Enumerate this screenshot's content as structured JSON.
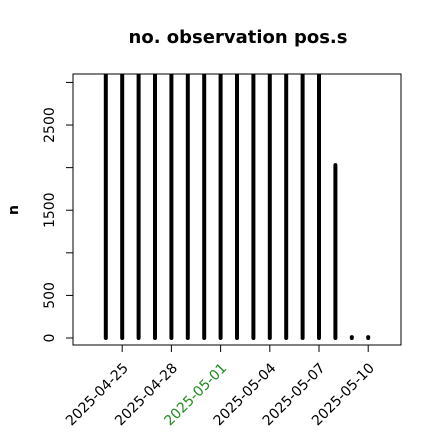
{
  "chart_data": {
    "type": "bar",
    "title": "no. observation pos.s",
    "y_label": "n",
    "x": [
      "2025-04-24",
      "2025-04-25",
      "2025-04-26",
      "2025-04-27",
      "2025-04-28",
      "2025-04-29",
      "2025-04-30",
      "2025-05-01",
      "2025-05-02",
      "2025-05-03",
      "2025-05-04",
      "2025-05-05",
      "2025-05-06",
      "2025-05-07",
      "2025-05-08",
      "2025-05-09",
      "2025-05-10"
    ],
    "values": [
      3100,
      3100,
      3100,
      3100,
      3100,
      3100,
      3100,
      3100,
      3100,
      3100,
      3100,
      3100,
      3100,
      3100,
      2030,
      10,
      10
    ],
    "color": "#000000",
    "xlim": [
      "2025-04-22",
      "2025-05-12"
    ],
    "xticks": [
      "2025-04-25",
      "2025-04-28",
      "2025-05-01",
      "2025-05-04",
      "2025-05-07",
      "2025-05-10"
    ],
    "xtick_colors": [
      "#000000",
      "#000000",
      "#228b22",
      "#000000",
      "#000000",
      "#000000"
    ],
    "ylim": [
      -82,
      3099
    ],
    "yticks": [
      0,
      500,
      {
        "value": 1000,
        "label": null
      },
      1500,
      {
        "value": 2000,
        "label": null
      },
      2500,
      {
        "value": 3000,
        "label": null
      }
    ],
    "grid": false
  }
}
